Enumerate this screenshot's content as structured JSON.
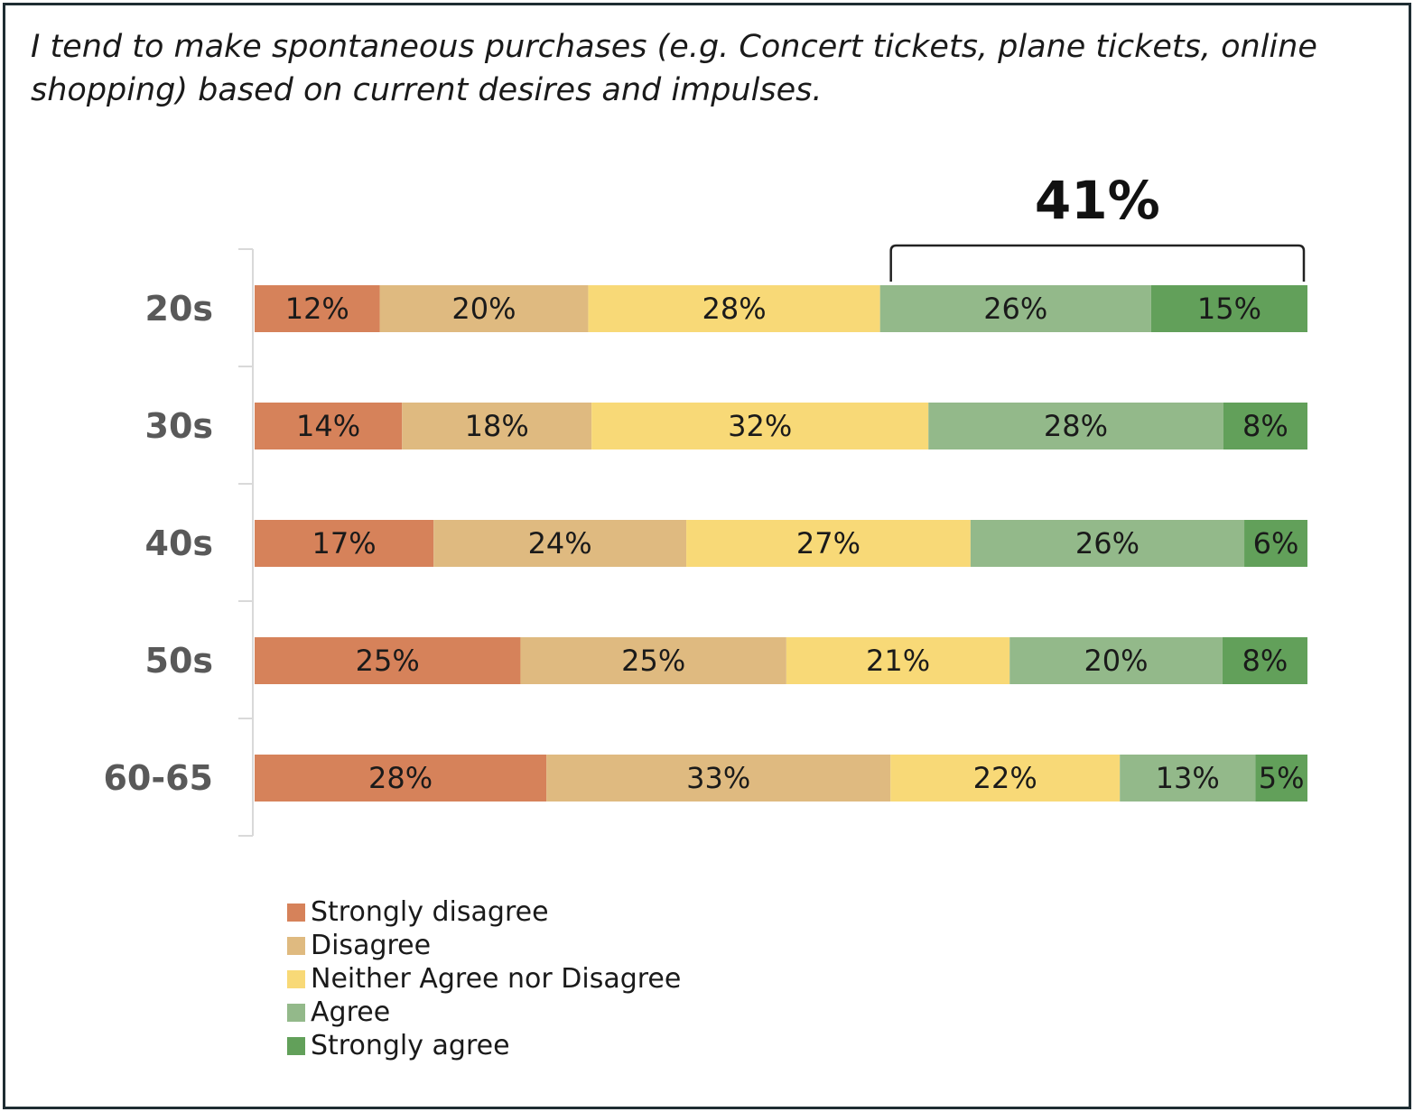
{
  "colors": {
    "strongly_disagree": "#d6825a",
    "disagree": "#dfba80",
    "neither": "#f8d977",
    "agree": "#93b98a",
    "strongly_agree": "#62a05a",
    "axis": "#d9d9d9",
    "bracket": "#222222"
  },
  "chart_data": {
    "type": "bar",
    "orientation": "horizontal",
    "stacked": true,
    "title": "I tend to make spontaneous purchases (e.g. Concert tickets, plane tickets, online shopping) based on current desires and impulses.",
    "categories": [
      "20s",
      "30s",
      "40s",
      "50s",
      "60-65"
    ],
    "series": [
      {
        "name": "Strongly disagree",
        "values": [
          12,
          14,
          17,
          25,
          28
        ],
        "labels": [
          "12%",
          "14%",
          "17%",
          "25%",
          "28%"
        ]
      },
      {
        "name": "Disagree",
        "values": [
          20,
          18,
          24,
          25,
          33
        ],
        "labels": [
          "20%",
          "18%",
          "24%",
          "25%",
          "33%"
        ]
      },
      {
        "name": "Neither Agree nor Disagree",
        "values": [
          28,
          32,
          27,
          21,
          22
        ],
        "labels": [
          "28%",
          "32%",
          "27%",
          "21%",
          "22%"
        ]
      },
      {
        "name": "Agree",
        "values": [
          26,
          28,
          26,
          20,
          13
        ],
        "labels": [
          "26%",
          "28%",
          "26%",
          "20%",
          "13%"
        ]
      },
      {
        "name": "Strongly agree",
        "values": [
          15,
          8,
          6,
          8,
          5
        ],
        "labels": [
          "15%",
          "8%",
          "6%",
          "8%",
          "5%"
        ]
      }
    ],
    "xlim": [
      0,
      100
    ],
    "grid": false,
    "legend": "bottom-left",
    "annotation": {
      "text": "41%",
      "category": "20s",
      "series": [
        "Agree",
        "Strongly agree"
      ]
    }
  }
}
